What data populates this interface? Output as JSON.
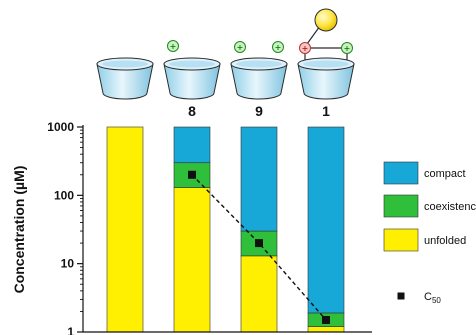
{
  "chart_data": {
    "type": "bar",
    "stacked": true,
    "categories": [
      "",
      "8",
      "9",
      "1"
    ],
    "ylabel": "Concentration (µM)",
    "yscale": "log",
    "ylim": [
      1,
      1000
    ],
    "yticks": [
      {
        "value": 1,
        "label": "1"
      },
      {
        "value": 10,
        "label": "10"
      },
      {
        "value": 100,
        "label": "100"
      },
      {
        "value": 1000,
        "label": "1000"
      }
    ],
    "series": [
      {
        "name": "unfolded",
        "color": "#ffef00",
        "from": [
          1,
          1,
          1,
          1
        ],
        "to": [
          1000,
          130,
          13,
          1.2
        ]
      },
      {
        "name": "coexistence",
        "color": "#2fbf3a",
        "from": [
          null,
          130,
          13,
          1.2
        ],
        "to": [
          null,
          300,
          30,
          1.9
        ]
      },
      {
        "name": "compact",
        "color": "#17a8d8",
        "from": [
          null,
          300,
          30,
          1.9
        ],
        "to": [
          null,
          1000,
          1000,
          1000
        ]
      }
    ],
    "c50": {
      "name": "C",
      "subscript": "50",
      "values": [
        null,
        200,
        20,
        1.5
      ],
      "line_style": "dashed"
    },
    "molecules": [
      {
        "label": "",
        "positive_groups": 0,
        "negative_groups": 0,
        "tethered_sphere": false
      },
      {
        "label": "8",
        "positive_groups": 1,
        "negative_groups": 0,
        "tethered_sphere": false
      },
      {
        "label": "9",
        "positive_groups": 2,
        "negative_groups": 0,
        "tethered_sphere": false
      },
      {
        "label": "1",
        "positive_groups": 1,
        "negative_groups": 1,
        "tethered_sphere": true
      }
    ],
    "legend_order": [
      "compact",
      "coexistence",
      "unfolded"
    ],
    "legend_position": "right",
    "grid": false
  }
}
